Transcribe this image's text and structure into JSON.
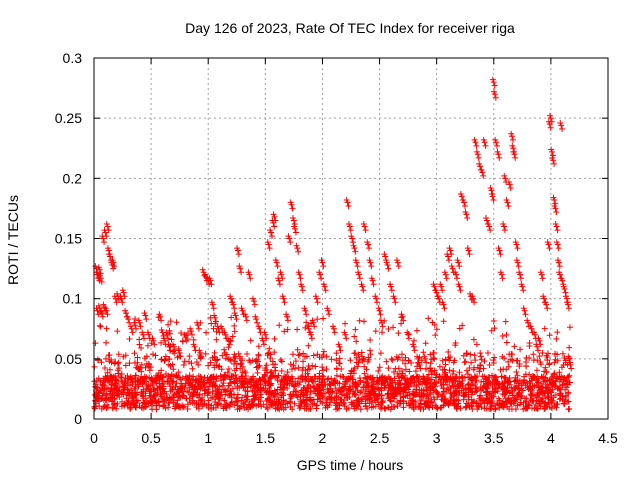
{
  "chart_data": {
    "type": "scatter",
    "title": "Day 126 of 2023, Rate Of TEC Index for receiver riga",
    "xlabel": "GPS time / hours",
    "ylabel": "ROTI / TECUs",
    "xlim": [
      0,
      4.5
    ],
    "ylim": [
      0,
      0.3
    ],
    "xticks": [
      0,
      0.5,
      1,
      1.5,
      2,
      2.5,
      3,
      3.5,
      4,
      4.5
    ],
    "xtick_labels": [
      "0",
      "0.5",
      "1",
      "1.5",
      "2",
      "2.5",
      "3",
      "3.5",
      "4",
      "4.5"
    ],
    "yticks": [
      0,
      0.05,
      0.1,
      0.15,
      0.2,
      0.25,
      0.3
    ],
    "ytick_labels": [
      "0",
      "0.05",
      "0.1",
      "0.15",
      "0.2",
      "0.25",
      "0.3"
    ],
    "grid": true,
    "marker": "+",
    "color": "#ff0000",
    "series": [
      {
        "name": "ROTI",
        "note": "Dense band of points between 0.005 and 0.05 TECU across 0-4.17 h; individual satellite arcs shown as sampled points",
        "x_range": [
          0,
          4.17
        ],
        "points": [
          [
            0.02,
            0.125
          ],
          [
            0.03,
            0.12
          ],
          [
            0.04,
            0.118
          ],
          [
            0.05,
            0.124
          ],
          [
            0.06,
            0.117
          ],
          [
            0.03,
            0.09
          ],
          [
            0.05,
            0.092
          ],
          [
            0.07,
            0.088
          ],
          [
            0.09,
            0.093
          ],
          [
            0.11,
            0.09
          ],
          [
            0.08,
            0.15
          ],
          [
            0.1,
            0.155
          ],
          [
            0.12,
            0.16
          ],
          [
            0.13,
            0.14
          ],
          [
            0.14,
            0.135
          ],
          [
            0.16,
            0.128
          ],
          [
            0.17,
            0.13
          ],
          [
            0.19,
            0.1
          ],
          [
            0.21,
            0.102
          ],
          [
            0.24,
            0.1
          ],
          [
            0.26,
            0.105
          ],
          [
            0.28,
            0.088
          ],
          [
            0.3,
            0.083
          ],
          [
            0.33,
            0.075
          ],
          [
            0.36,
            0.078
          ],
          [
            0.4,
            0.08
          ],
          [
            0.43,
            0.07
          ],
          [
            0.45,
            0.086
          ],
          [
            0.48,
            0.07
          ],
          [
            0.52,
            0.065
          ],
          [
            0.58,
            0.085
          ],
          [
            0.6,
            0.072
          ],
          [
            0.62,
            0.065
          ],
          [
            0.64,
            0.07
          ],
          [
            0.66,
            0.06
          ],
          [
            0.7,
            0.06
          ],
          [
            0.75,
            0.055
          ],
          [
            0.8,
            0.068
          ],
          [
            0.85,
            0.073
          ],
          [
            0.88,
            0.06
          ],
          [
            0.91,
            0.078
          ],
          [
            0.93,
            0.055
          ],
          [
            0.96,
            0.122
          ],
          [
            0.98,
            0.118
          ],
          [
            1.0,
            0.115
          ],
          [
            1.02,
            0.115
          ],
          [
            1.04,
            0.095
          ],
          [
            1.06,
            0.084
          ],
          [
            1.09,
            0.075
          ],
          [
            1.12,
            0.075
          ],
          [
            1.15,
            0.07
          ],
          [
            1.18,
            0.065
          ],
          [
            1.2,
            0.1
          ],
          [
            1.22,
            0.095
          ],
          [
            1.24,
            0.086
          ],
          [
            1.26,
            0.14
          ],
          [
            1.28,
            0.125
          ],
          [
            1.3,
            0.09
          ],
          [
            1.33,
            0.085
          ],
          [
            1.36,
            0.12
          ],
          [
            1.4,
            0.098
          ],
          [
            1.42,
            0.083
          ],
          [
            1.45,
            0.075
          ],
          [
            1.48,
            0.065
          ],
          [
            1.5,
            0.07
          ],
          [
            1.53,
            0.145
          ],
          [
            1.55,
            0.155
          ],
          [
            1.57,
            0.163
          ],
          [
            1.58,
            0.168
          ],
          [
            1.6,
            0.13
          ],
          [
            1.62,
            0.115
          ],
          [
            1.64,
            0.12
          ],
          [
            1.66,
            0.1
          ],
          [
            1.69,
            0.085
          ],
          [
            1.71,
            0.15
          ],
          [
            1.73,
            0.178
          ],
          [
            1.75,
            0.165
          ],
          [
            1.76,
            0.158
          ],
          [
            1.78,
            0.142
          ],
          [
            1.8,
            0.12
          ],
          [
            1.82,
            0.11
          ],
          [
            1.85,
            0.09
          ],
          [
            1.88,
            0.075
          ],
          [
            1.9,
            0.07
          ],
          [
            1.92,
            0.08
          ],
          [
            1.95,
            0.1
          ],
          [
            1.98,
            0.12
          ],
          [
            2.0,
            0.13
          ],
          [
            2.02,
            0.11
          ],
          [
            2.05,
            0.09
          ],
          [
            2.1,
            0.075
          ],
          [
            2.15,
            0.06
          ],
          [
            2.2,
            0.07
          ],
          [
            2.22,
            0.18
          ],
          [
            2.24,
            0.16
          ],
          [
            2.26,
            0.15
          ],
          [
            2.28,
            0.142
          ],
          [
            2.3,
            0.13
          ],
          [
            2.32,
            0.12
          ],
          [
            2.35,
            0.11
          ],
          [
            2.37,
            0.16
          ],
          [
            2.4,
            0.145
          ],
          [
            2.42,
            0.13
          ],
          [
            2.44,
            0.115
          ],
          [
            2.47,
            0.1
          ],
          [
            2.5,
            0.09
          ],
          [
            2.52,
            0.08
          ],
          [
            2.55,
            0.135
          ],
          [
            2.57,
            0.128
          ],
          [
            2.6,
            0.11
          ],
          [
            2.63,
            0.1
          ],
          [
            2.66,
            0.13
          ],
          [
            2.7,
            0.085
          ],
          [
            2.75,
            0.07
          ],
          [
            2.8,
            0.06
          ],
          [
            2.85,
            0.045
          ],
          [
            2.9,
            0.05
          ],
          [
            2.95,
            0.04
          ],
          [
            2.98,
            0.11
          ],
          [
            3.0,
            0.105
          ],
          [
            3.02,
            0.1
          ],
          [
            3.04,
            0.11
          ],
          [
            3.06,
            0.095
          ],
          [
            3.08,
            0.12
          ],
          [
            3.1,
            0.135
          ],
          [
            3.12,
            0.14
          ],
          [
            3.14,
            0.125
          ],
          [
            3.17,
            0.12
          ],
          [
            3.19,
            0.13
          ],
          [
            3.2,
            0.11
          ],
          [
            3.22,
            0.185
          ],
          [
            3.24,
            0.18
          ],
          [
            3.26,
            0.17
          ],
          [
            3.28,
            0.14
          ],
          [
            3.3,
            0.102
          ],
          [
            3.32,
            0.1
          ],
          [
            3.34,
            0.23
          ],
          [
            3.36,
            0.22
          ],
          [
            3.38,
            0.21
          ],
          [
            3.4,
            0.205
          ],
          [
            3.42,
            0.23
          ],
          [
            3.44,
            0.165
          ],
          [
            3.46,
            0.16
          ],
          [
            3.48,
            0.19
          ],
          [
            3.49,
            0.185
          ],
          [
            3.5,
            0.28
          ],
          [
            3.51,
            0.27
          ],
          [
            3.52,
            0.23
          ],
          [
            3.54,
            0.22
          ],
          [
            3.55,
            0.14
          ],
          [
            3.57,
            0.12
          ],
          [
            3.59,
            0.16
          ],
          [
            3.6,
            0.2
          ],
          [
            3.62,
            0.18
          ],
          [
            3.64,
            0.195
          ],
          [
            3.66,
            0.235
          ],
          [
            3.67,
            0.225
          ],
          [
            3.68,
            0.22
          ],
          [
            3.7,
            0.145
          ],
          [
            3.71,
            0.13
          ],
          [
            3.73,
            0.12
          ],
          [
            3.75,
            0.11
          ],
          [
            3.77,
            0.09
          ],
          [
            3.8,
            0.08
          ],
          [
            3.83,
            0.075
          ],
          [
            3.86,
            0.07
          ],
          [
            3.88,
            0.06
          ],
          [
            3.9,
            0.065
          ],
          [
            3.92,
            0.12
          ],
          [
            3.94,
            0.1
          ],
          [
            3.96,
            0.095
          ],
          [
            3.98,
            0.145
          ],
          [
            3.99,
            0.245
          ],
          [
            4.0,
            0.25
          ],
          [
            4.01,
            0.222
          ],
          [
            4.02,
            0.215
          ],
          [
            4.03,
            0.182
          ],
          [
            4.04,
            0.175
          ],
          [
            4.05,
            0.16
          ],
          [
            4.06,
            0.145
          ],
          [
            4.07,
            0.13
          ],
          [
            4.08,
            0.12
          ],
          [
            4.09,
            0.244
          ],
          [
            4.1,
            0.115
          ],
          [
            4.12,
            0.108
          ],
          [
            4.14,
            0.1
          ],
          [
            4.15,
            0.095
          ],
          [
            4.16,
            0.05
          ],
          [
            4.17,
            0.045
          ]
        ]
      }
    ]
  }
}
